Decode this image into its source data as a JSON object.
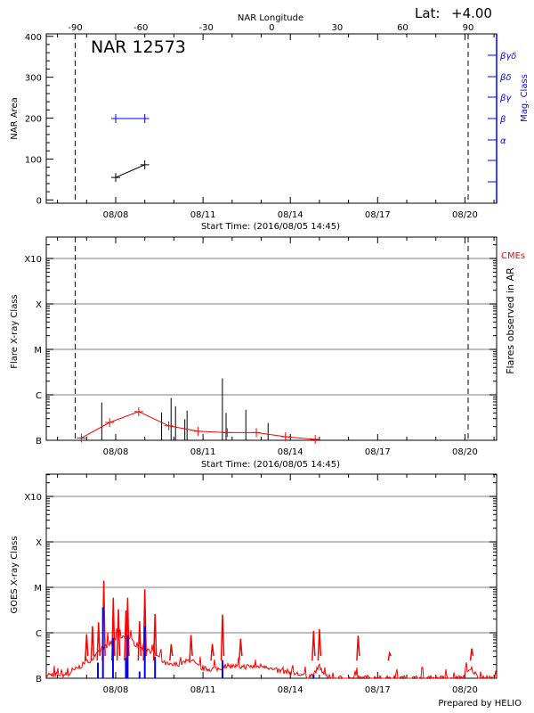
{
  "header": {
    "lat_label": "Lat:",
    "lat_value": "+4.00"
  },
  "footer": {
    "credit": "Prepared by HELIO"
  },
  "colors": {
    "area": "#000000",
    "mag_class": "#0000ff",
    "goes_long": "#ff0000",
    "goes_short": "#0000ff",
    "flare_count": "#ff0000",
    "grid": "#999999"
  },
  "chart_data": [
    {
      "type": "line",
      "title": "NAR 12573",
      "xlabel": "Start Time: (2016/08/05 14:45)",
      "ylabel": "NAR Area",
      "ylabel_right": "Mag. Class",
      "top_axis_label": "NAR Longitude",
      "top_axis_ticks": [
        "-90",
        "-60",
        "-30",
        "0",
        "30",
        "60",
        "90"
      ],
      "x_ticks": [
        "08/08",
        "08/11",
        "08/14",
        "08/17",
        "08/20"
      ],
      "y_ticks": [
        "0",
        "100",
        "200",
        "300",
        "400"
      ],
      "ylim": [
        -8,
        406
      ],
      "limb_markers_longitude": [
        -90,
        90
      ],
      "mag_class_ticks": [
        "",
        "",
        "α",
        "β",
        "βγ",
        "βδ",
        "βγδ"
      ],
      "series": [
        {
          "kind": "area",
          "points": [
            {
              "t": "2016-08-08 00:00",
              "y": 55
            },
            {
              "t": "2016-08-09 00:00",
              "y": 86
            }
          ]
        },
        {
          "kind": "mag_class",
          "points": [
            {
              "t": "2016-08-08 00:00",
              "y": "β"
            },
            {
              "t": "2016-08-09 00:00",
              "y": "β"
            }
          ]
        }
      ]
    },
    {
      "type": "bar",
      "xlabel": "Start Time: (2016/08/05 14:45)",
      "ylabel": "Flare X-ray Class",
      "ylabel_right": "Flares observed in AR",
      "cme_label": "CMEs",
      "y_scale": "log",
      "y_ticks": [
        "B",
        "C",
        "M",
        "X",
        "X10"
      ],
      "x_ticks": [
        "08/08",
        "08/11",
        "08/14",
        "08/17",
        "08/20"
      ],
      "ylim": [
        "B1.0",
        "X30"
      ],
      "grid": true,
      "flares": [
        {
          "t": "2016-08-07 12:30",
          "class": "B6.8"
        },
        {
          "t": "2016-08-09 13:50",
          "class": "B4.1"
        },
        {
          "t": "2016-08-09 21:40",
          "class": "B8.5"
        },
        {
          "t": "2016-08-10 01:20",
          "class": "B5.6"
        },
        {
          "t": "2016-08-10 09:00",
          "class": "B2.9"
        },
        {
          "t": "2016-08-10 10:50",
          "class": "B4.5"
        },
        {
          "t": "2016-08-11 16:00",
          "class": "C2.3"
        },
        {
          "t": "2016-08-11 19:00",
          "class": "B4.0"
        },
        {
          "t": "2016-08-12 11:20",
          "class": "B4.7"
        },
        {
          "t": "2016-08-13 05:40",
          "class": "B2.4"
        }
      ],
      "flare_count": {
        "ylim": [
          0,
          30
        ],
        "points": [
          {
            "t": "2016-08-06 19:40",
            "y": 0.2
          },
          {
            "t": "2016-08-07 19:00",
            "y": 2.5
          },
          {
            "t": "2016-08-08 19:00",
            "y": 4.1
          },
          {
            "t": "2016-08-09 19:45",
            "y": 2.0
          },
          {
            "t": "2016-08-10 20:00",
            "y": 1.2
          },
          {
            "t": "2016-08-11 20:00",
            "y": 1.0
          },
          {
            "t": "2016-08-12 20:00",
            "y": 1.0
          },
          {
            "t": "2016-08-13 20:00",
            "y": 0.4
          },
          {
            "t": "2016-08-14 20:30",
            "y": 0.0
          }
        ]
      }
    },
    {
      "type": "line",
      "ylabel": "GOES X-ray Class",
      "y_scale": "log",
      "y_ticks": [
        "B",
        "C",
        "M",
        "X",
        "X10"
      ],
      "x_ticks": [
        "08/08",
        "08/11",
        "08/14",
        "08/17",
        "08/20"
      ],
      "ylim": [
        "B1.0",
        "X30"
      ],
      "grid": true,
      "long_channel_baseline": [
        {
          "t": "2016-08-05 14:45",
          "c": "B1.2"
        },
        {
          "t": "2016-08-06 08:25",
          "c": "B1.2"
        },
        {
          "t": "2016-08-06 19:40",
          "c": "B1.9"
        },
        {
          "t": "2016-08-07 04:05",
          "c": "B2.6"
        },
        {
          "t": "2016-08-07 09:50",
          "c": "B3.5"
        },
        {
          "t": "2016-08-07 12:40",
          "c": "B4.7"
        },
        {
          "t": "2016-08-07 18:15",
          "c": "B5.5"
        },
        {
          "t": "2016-08-08 00:00",
          "c": "B7.4"
        },
        {
          "t": "2016-08-08 05:40",
          "c": "B8.6"
        },
        {
          "t": "2016-08-08 11:15",
          "c": "B7.4"
        },
        {
          "t": "2016-08-08 16:50",
          "c": "B5.5"
        },
        {
          "t": "2016-08-08 22:30",
          "c": "B4.7"
        },
        {
          "t": "2016-08-09 04:10",
          "c": "B4.1"
        },
        {
          "t": "2016-08-09 09:50",
          "c": "B3.2"
        },
        {
          "t": "2016-08-09 15:30",
          "c": "B2.2"
        },
        {
          "t": "2016-08-09 21:10",
          "c": "B1.9"
        },
        {
          "t": "2016-08-10 08:25",
          "c": "B2.2"
        },
        {
          "t": "2016-08-10 14:05",
          "c": "B2.6"
        },
        {
          "t": "2016-08-10 19:45",
          "c": "B1.8"
        },
        {
          "t": "2016-08-11 01:25",
          "c": "B1.6"
        },
        {
          "t": "2016-08-11 12:40",
          "c": "B1.6"
        },
        {
          "t": "2016-08-11 18:20",
          "c": "B1.9"
        },
        {
          "t": "2016-08-12 05:35",
          "c": "B1.8"
        },
        {
          "t": "2016-08-12 16:50",
          "c": "B1.8"
        },
        {
          "t": "2016-08-13 04:05",
          "c": "B1.9"
        },
        {
          "t": "2016-08-13 09:45",
          "c": "B1.5"
        },
        {
          "t": "2016-08-13 21:05",
          "c": "B1.4"
        },
        {
          "t": "2016-08-14 08:25",
          "c": "B1.2"
        },
        {
          "t": "2016-08-14 14:05",
          "c": "B1.1"
        },
        {
          "t": "2016-08-14 19:40",
          "c": "B1.2"
        },
        {
          "t": "2016-08-15 00:00",
          "c": "B1.9"
        },
        {
          "t": "2016-08-15 04:05",
          "c": "B1.1"
        },
        {
          "t": "2016-08-15 12:40",
          "c": "B1.0"
        },
        {
          "t": "2016-08-16 05:35",
          "c": "B1.0"
        },
        {
          "t": "2016-08-16 22:30",
          "c": "B1.0"
        },
        {
          "t": "2016-08-18 02:40",
          "c": "B1.0"
        },
        {
          "t": "2016-08-19 21:10",
          "c": "B1.0"
        },
        {
          "t": "2016-08-20 05:35",
          "c": "B1.6"
        },
        {
          "t": "2016-08-20 11:15",
          "c": "B1.0"
        },
        {
          "t": "2016-08-21 01:10",
          "c": "B1.0"
        }
      ],
      "long_channel_peaks": [
        {
          "t": "2016-08-07 00:00",
          "c": "B9.3"
        },
        {
          "t": "2016-08-07 04:50",
          "c": "C1.4"
        },
        {
          "t": "2016-08-07 09:50",
          "c": "C1.7"
        },
        {
          "t": "2016-08-07 14:10",
          "c": "M1.4"
        },
        {
          "t": "2016-08-07 22:00",
          "c": "C5.9"
        },
        {
          "t": "2016-08-08 02:15",
          "c": "C3.3"
        },
        {
          "t": "2016-08-08 08:25",
          "c": "C3.1"
        },
        {
          "t": "2016-08-08 09:50",
          "c": "C5.9"
        },
        {
          "t": "2016-08-08 19:40",
          "c": "C1.8"
        },
        {
          "t": "2016-08-09 00:00",
          "c": "C9.1"
        },
        {
          "t": "2016-08-09 08:25",
          "c": "C2.6"
        },
        {
          "t": "2016-08-09 21:45",
          "c": "B5.6"
        },
        {
          "t": "2016-08-10 14:05",
          "c": "B8.9"
        },
        {
          "t": "2016-08-11 07:40",
          "c": "B5.7"
        },
        {
          "t": "2016-08-11 16:05",
          "c": "C2.5"
        },
        {
          "t": "2016-08-12 07:00",
          "c": "B7.4"
        },
        {
          "t": "2016-08-14 19:10",
          "c": "C1.1"
        },
        {
          "t": "2016-08-15 00:00",
          "c": "C1.2"
        },
        {
          "t": "2016-08-16 07:55",
          "c": "B8.6"
        },
        {
          "t": "2016-08-17 09:50",
          "c": "B3.6"
        },
        {
          "t": "2016-08-20 05:35",
          "c": "B4.5"
        }
      ],
      "short_channel_peaks": [
        {
          "t": "2016-08-07 09:20",
          "c": "B2.2"
        },
        {
          "t": "2016-08-07 13:30",
          "c": "C3.6"
        },
        {
          "t": "2016-08-07 21:45",
          "c": "B7.7"
        },
        {
          "t": "2016-08-08 08:25",
          "c": "B2.8"
        },
        {
          "t": "2016-08-08 09:50",
          "c": "B8.9"
        },
        {
          "t": "2016-08-08 19:40",
          "c": "B1.4"
        },
        {
          "t": "2016-08-09 00:00",
          "c": "C1.4"
        },
        {
          "t": "2016-08-09 08:25",
          "c": "B3.0"
        },
        {
          "t": "2016-08-11 16:05",
          "c": "B2.5"
        },
        {
          "t": "2016-08-14 19:10",
          "c": "B1.2"
        }
      ]
    }
  ]
}
